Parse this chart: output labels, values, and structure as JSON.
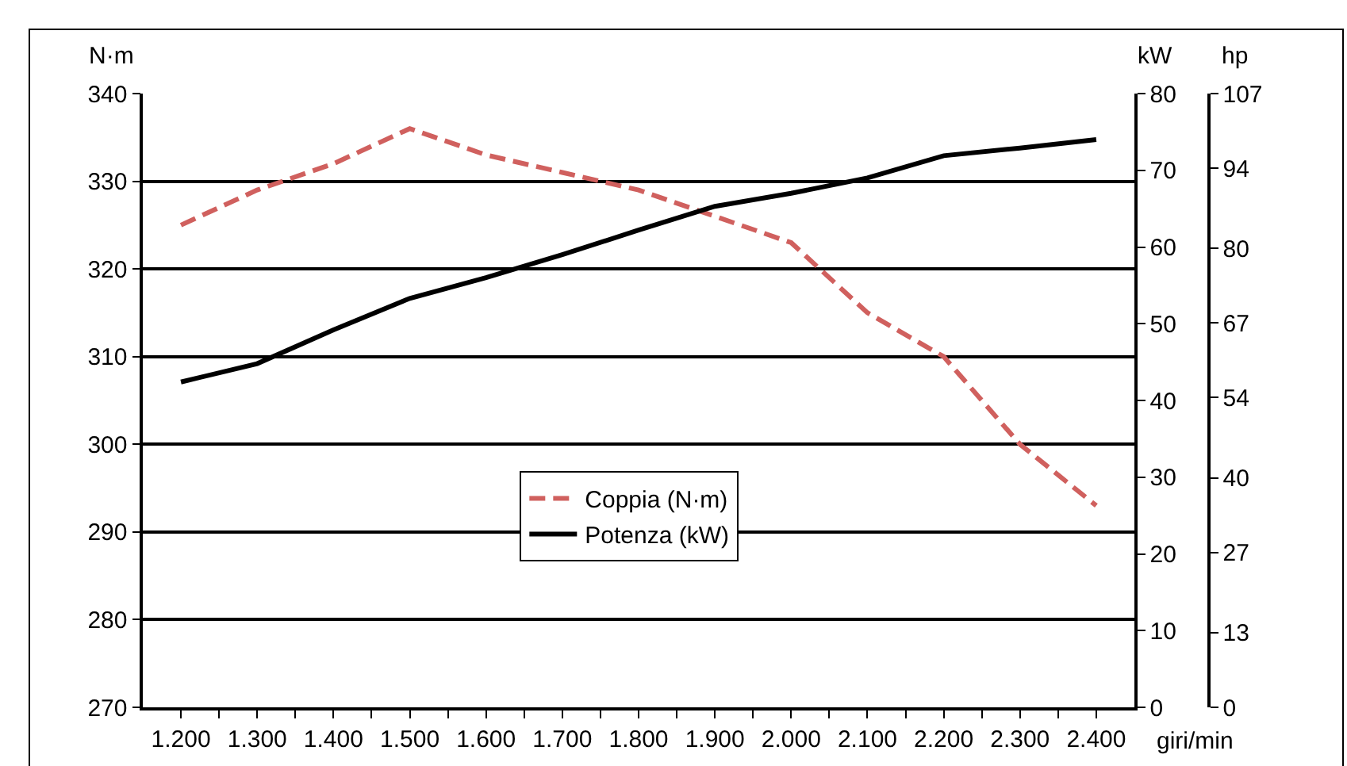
{
  "chart_data": {
    "type": "line",
    "x": [
      1200,
      1300,
      1400,
      1500,
      1600,
      1700,
      1800,
      1900,
      2000,
      2100,
      2200,
      2300,
      2400
    ],
    "series": [
      {
        "name": "Coppia (N·m)",
        "color": "#d0605e",
        "line_style": "dashed",
        "values": [
          325,
          329,
          332,
          336,
          333,
          331,
          329,
          326,
          323,
          315,
          310,
          300,
          293
        ]
      },
      {
        "name": "Potenza (kW)",
        "color": "#000000",
        "line_style": "solid",
        "axis": "y2",
        "values": [
          42.4,
          44.8,
          49.2,
          53.3,
          56,
          59,
          62.2,
          65.3,
          67,
          69,
          71.9,
          72.9,
          74
        ]
      }
    ],
    "xlabel": "giri/min",
    "ylabel": "N·m",
    "y2label": "kW",
    "y3label": "hp",
    "xlim": [
      1150,
      2450
    ],
    "xticks": [
      {
        "value": 1200,
        "label": "1.200"
      },
      {
        "value": 1250,
        "label": null
      },
      {
        "value": 1300,
        "label": "1.300"
      },
      {
        "value": 1350,
        "label": null
      },
      {
        "value": 1400,
        "label": "1.400"
      },
      {
        "value": 1450,
        "label": null
      },
      {
        "value": 1500,
        "label": "1.500"
      },
      {
        "value": 1550,
        "label": null
      },
      {
        "value": 1600,
        "label": "1.600"
      },
      {
        "value": 1650,
        "label": null
      },
      {
        "value": 1700,
        "label": "1.700"
      },
      {
        "value": 1750,
        "label": null
      },
      {
        "value": 1800,
        "label": "1.800"
      },
      {
        "value": 1850,
        "label": null
      },
      {
        "value": 1900,
        "label": "1.900"
      },
      {
        "value": 1950,
        "label": null
      },
      {
        "value": 2000,
        "label": "2.000"
      },
      {
        "value": 2050,
        "label": null
      },
      {
        "value": 2100,
        "label": "2.100"
      },
      {
        "value": 2150,
        "label": null
      },
      {
        "value": 2200,
        "label": "2.200"
      },
      {
        "value": 2250,
        "label": null
      },
      {
        "value": 2300,
        "label": "2.300"
      },
      {
        "value": 2350,
        "label": null
      },
      {
        "value": 2400,
        "label": "2.400"
      }
    ],
    "ylim": [
      270,
      340
    ],
    "yticks": [
      270,
      280,
      290,
      300,
      310,
      320,
      330,
      340
    ],
    "y2lim": [
      0,
      80
    ],
    "y2ticks": [
      0,
      10,
      20,
      30,
      40,
      50,
      60,
      70,
      80
    ],
    "y3lim": [
      0,
      107
    ],
    "y3ticks": [
      0,
      13,
      27,
      40,
      54,
      67,
      80,
      94,
      107
    ],
    "grid": "y",
    "legend": "bottom",
    "marker": "none"
  }
}
